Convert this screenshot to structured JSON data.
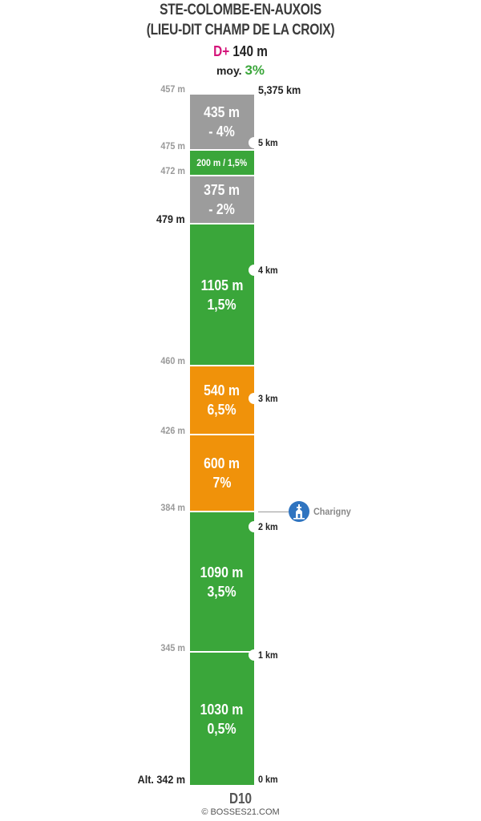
{
  "header": {
    "title_line1": "STE-COLOMBE-EN-AUXOIS",
    "title_line2": "(LIEU-DIT CHAMP DE LA CROIX)",
    "dplus_label": "D+",
    "dplus_value": "140 m",
    "moy_label": "moy.",
    "moy_value": "3%"
  },
  "colors": {
    "green": "#3aa63a",
    "grey": "#9c9c9c",
    "orange": "#f0920a",
    "dplus": "#d4147a",
    "poi": "#2f74c0"
  },
  "segments": [
    {
      "length": "435 m",
      "grade": "- 4%",
      "color": "grey"
    },
    {
      "length": "200 m / 1,5%",
      "grade": "",
      "color": "green"
    },
    {
      "length": "375 m",
      "grade": "- 2%",
      "color": "grey"
    },
    {
      "length": "1105 m",
      "grade": "1,5%",
      "color": "green"
    },
    {
      "length": "540 m",
      "grade": "6,5%",
      "color": "orange"
    },
    {
      "length": "600 m",
      "grade": "7%",
      "color": "orange"
    },
    {
      "length": "1090 m",
      "grade": "3,5%",
      "color": "green"
    },
    {
      "length": "1030 m",
      "grade": "0,5%",
      "color": "green"
    }
  ],
  "altitudes": [
    "457 m",
    "475 m",
    "472 m",
    "479 m",
    "460 m",
    "426 m",
    "384 m",
    "345 m",
    "Alt. 342 m"
  ],
  "km_markers": [
    "5,375 km",
    "5 km",
    "4 km",
    "3 km",
    "2 km",
    "1 km",
    "0 km"
  ],
  "poi": {
    "label": "Charigny",
    "icon": "church-icon"
  },
  "footer": {
    "road": "D10",
    "copyright": "© BOSSES21.COM"
  }
}
